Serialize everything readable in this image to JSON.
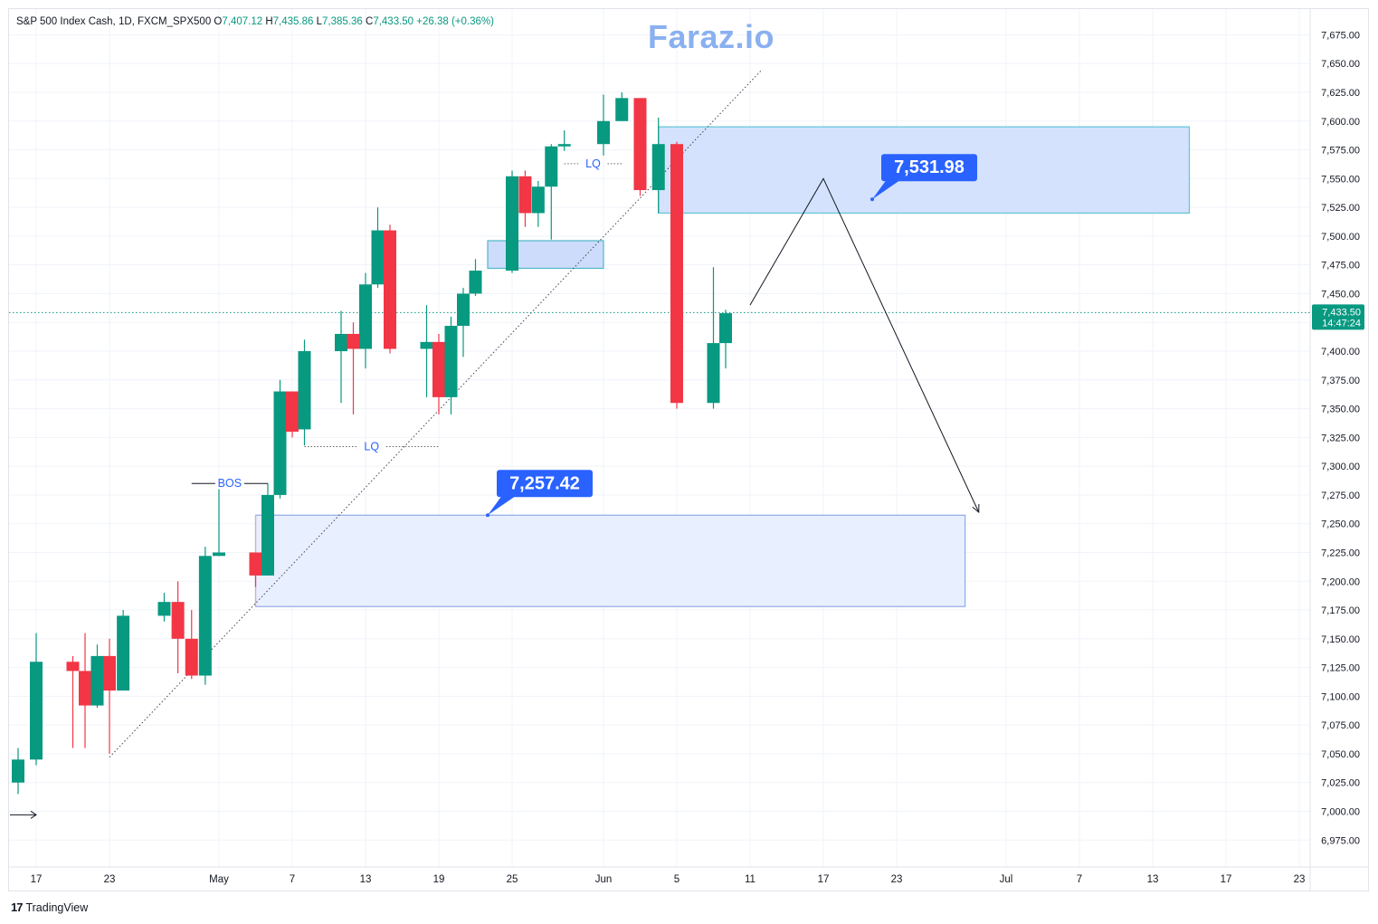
{
  "header": {
    "symbol": "S&P 500 Index Cash, 1D, FXCM_SPX500",
    "open_label": "O",
    "open": "7,407.12",
    "high_label": "H",
    "high": "7,435.86",
    "low_label": "L",
    "low": "7,385.36",
    "close_label": "C",
    "close": "7,433.50",
    "change": "+26.38 (+0.36%)"
  },
  "watermark": "Faraz.io",
  "footer": {
    "brand": "TradingView",
    "logo_icon": "tradingview-logo-icon"
  },
  "colors": {
    "up": "#089981",
    "down": "#f23645",
    "accent": "#2962ff",
    "zone": "#dbe6fd"
  },
  "chart_data": {
    "type": "candlestick",
    "ylim": [
      6950,
      7700
    ],
    "y_ticks": [
      "7,675.00",
      "7,650.00",
      "7,625.00",
      "7,600.00",
      "7,575.00",
      "7,550.00",
      "7,525.00",
      "7,500.00",
      "7,475.00",
      "7,450.00",
      "7,425.00",
      "7,400.00",
      "7,375.00",
      "7,350.00",
      "7,325.00",
      "7,300.00",
      "7,275.00",
      "7,250.00",
      "7,225.00",
      "7,200.00",
      "7,175.00",
      "7,150.00",
      "7,125.00",
      "7,100.00",
      "7,075.00",
      "7,050.00",
      "7,025.00",
      "7,000.00",
      "6,975.00"
    ],
    "x_ticks": [
      {
        "label": "17",
        "date": "2026-04-17"
      },
      {
        "label": "23",
        "date": "2026-04-23"
      },
      {
        "label": "May",
        "date": "2026-05-01"
      },
      {
        "label": "7",
        "date": "2026-05-07"
      },
      {
        "label": "13",
        "date": "2026-05-13"
      },
      {
        "label": "19",
        "date": "2026-05-19"
      },
      {
        "label": "25",
        "date": "2026-05-25"
      },
      {
        "label": "Jun",
        "date": "2026-06-01"
      },
      {
        "label": "5",
        "date": "2026-06-05"
      },
      {
        "label": "11",
        "date": "2026-06-11"
      },
      {
        "label": "17",
        "date": "2026-06-17"
      },
      {
        "label": "23",
        "date": "2026-06-23"
      },
      {
        "label": "Jul",
        "date": "2026-07-01"
      },
      {
        "label": "7",
        "date": "2026-07-07"
      },
      {
        "label": "13",
        "date": "2026-07-13"
      },
      {
        "label": "17",
        "date": "2026-07-17"
      },
      {
        "label": "23",
        "date": "2026-07-23"
      }
    ],
    "candles": [
      {
        "date": "2026-04-16",
        "o": 7025,
        "h": 7055,
        "l": 7015,
        "c": 7045
      },
      {
        "date": "2026-04-17",
        "o": 7045,
        "h": 7155,
        "l": 7040,
        "c": 7130
      },
      {
        "date": "2026-04-20",
        "o": 7130,
        "h": 7135,
        "l": 7055,
        "c": 7122
      },
      {
        "date": "2026-04-21",
        "o": 7122,
        "h": 7155,
        "l": 7055,
        "c": 7092
      },
      {
        "date": "2026-04-22",
        "o": 7092,
        "h": 7145,
        "l": 7090,
        "c": 7135
      },
      {
        "date": "2026-04-23",
        "o": 7135,
        "h": 7150,
        "l": 7050,
        "c": 7105
      },
      {
        "date": "2026-04-24",
        "o": 7105,
        "h": 7175,
        "l": 7105,
        "c": 7170
      },
      {
        "date": "2026-04-27",
        "o": 7170,
        "h": 7190,
        "l": 7165,
        "c": 7182
      },
      {
        "date": "2026-04-28",
        "o": 7182,
        "h": 7200,
        "l": 7120,
        "c": 7150
      },
      {
        "date": "2026-04-29",
        "o": 7150,
        "h": 7175,
        "l": 7115,
        "c": 7118
      },
      {
        "date": "2026-04-30",
        "o": 7118,
        "h": 7230,
        "l": 7110,
        "c": 7222
      },
      {
        "date": "2026-05-01",
        "o": 7222,
        "h": 7280,
        "l": 7222,
        "c": 7225
      },
      {
        "date": "2026-05-04",
        "o": 7225,
        "h": 7225,
        "l": 7195,
        "c": 7205
      },
      {
        "date": "2026-05-05",
        "o": 7205,
        "h": 7285,
        "l": 7205,
        "c": 7275
      },
      {
        "date": "2026-05-06",
        "o": 7275,
        "h": 7375,
        "l": 7272,
        "c": 7365
      },
      {
        "date": "2026-05-07",
        "o": 7365,
        "h": 7365,
        "l": 7325,
        "c": 7330
      },
      {
        "date": "2026-05-08",
        "o": 7332,
        "h": 7410,
        "l": 7318,
        "c": 7400
      },
      {
        "date": "2026-05-11",
        "o": 7400,
        "h": 7435,
        "l": 7355,
        "c": 7415
      },
      {
        "date": "2026-05-12",
        "o": 7415,
        "h": 7425,
        "l": 7345,
        "c": 7402
      },
      {
        "date": "2026-05-13",
        "o": 7402,
        "h": 7468,
        "l": 7385,
        "c": 7458
      },
      {
        "date": "2026-05-14",
        "o": 7458,
        "h": 7525,
        "l": 7455,
        "c": 7505
      },
      {
        "date": "2026-05-15",
        "o": 7505,
        "h": 7510,
        "l": 7398,
        "c": 7402
      },
      {
        "date": "2026-05-18",
        "o": 7402,
        "h": 7440,
        "l": 7360,
        "c": 7408
      },
      {
        "date": "2026-05-19",
        "o": 7408,
        "h": 7415,
        "l": 7345,
        "c": 7360
      },
      {
        "date": "2026-05-20",
        "o": 7360,
        "h": 7430,
        "l": 7345,
        "c": 7422
      },
      {
        "date": "2026-05-21",
        "o": 7422,
        "h": 7455,
        "l": 7395,
        "c": 7450
      },
      {
        "date": "2026-05-22",
        "o": 7450,
        "h": 7480,
        "l": 7448,
        "c": 7470
      },
      {
        "date": "2026-05-25",
        "o": 7470,
        "h": 7557,
        "l": 7468,
        "c": 7552
      },
      {
        "date": "2026-05-26",
        "o": 7552,
        "h": 7557,
        "l": 7508,
        "c": 7520
      },
      {
        "date": "2026-05-27",
        "o": 7520,
        "h": 7548,
        "l": 7508,
        "c": 7543
      },
      {
        "date": "2026-05-28",
        "o": 7543,
        "h": 7580,
        "l": 7497,
        "c": 7578
      },
      {
        "date": "2026-05-29",
        "o": 7578,
        "h": 7592,
        "l": 7574,
        "c": 7580
      },
      {
        "date": "2026-06-01",
        "o": 7580,
        "h": 7623,
        "l": 7570,
        "c": 7600
      },
      {
        "date": "2026-06-02",
        "o": 7600,
        "h": 7625,
        "l": 7600,
        "c": 7620
      },
      {
        "date": "2026-06-03",
        "o": 7620,
        "h": 7620,
        "l": 7535,
        "c": 7540
      },
      {
        "date": "2026-06-04",
        "o": 7540,
        "h": 7603,
        "l": 7520,
        "c": 7580
      },
      {
        "date": "2026-06-05",
        "o": 7580,
        "h": 7582,
        "l": 7350,
        "c": 7355
      },
      {
        "date": "2026-06-08",
        "o": 7355,
        "h": 7473,
        "l": 7350,
        "c": 7407
      },
      {
        "date": "2026-06-09",
        "o": 7407,
        "h": 7436,
        "l": 7385,
        "c": 7433
      }
    ],
    "current_price": "7,433.50",
    "countdown": "14:47:24",
    "price_labels": [
      {
        "text": "7,531.98",
        "price": 7531.98,
        "date": "2026-06-21"
      },
      {
        "text": "7,257.42",
        "price": 7257.42,
        "date": "2026-05-23"
      }
    ],
    "zones": [
      {
        "name": "supply-zone",
        "from": "2026-06-04",
        "to": "2026-07-15",
        "top": 7595,
        "bottom": 7520
      },
      {
        "name": "demand-zone",
        "from": "2026-05-04",
        "to": "2026-06-28",
        "top": 7257.42,
        "bottom": 7178
      },
      {
        "name": "small-zone",
        "from": "2026-05-23",
        "to": "2026-06-01",
        "top": 7496,
        "bottom": 7472
      }
    ],
    "annotations": [
      {
        "text": "BOS",
        "price": 7285,
        "from": "2026-04-29",
        "to": "2026-05-05"
      },
      {
        "text": "LQ",
        "price": 7317,
        "from": "2026-05-08",
        "to": "2026-05-19"
      },
      {
        "text": "LQ",
        "price": 7563,
        "from": "2026-05-29",
        "to": "2026-06-02"
      }
    ],
    "trendline": [
      {
        "date": "2026-04-23",
        "price": 7047
      },
      {
        "date": "2026-06-12",
        "price": 7645
      }
    ],
    "projection": [
      {
        "date": "2026-06-11",
        "price": 7440
      },
      {
        "date": "2026-06-17",
        "price": 7550
      },
      {
        "date": "2026-06-29",
        "price": 7260
      }
    ]
  }
}
